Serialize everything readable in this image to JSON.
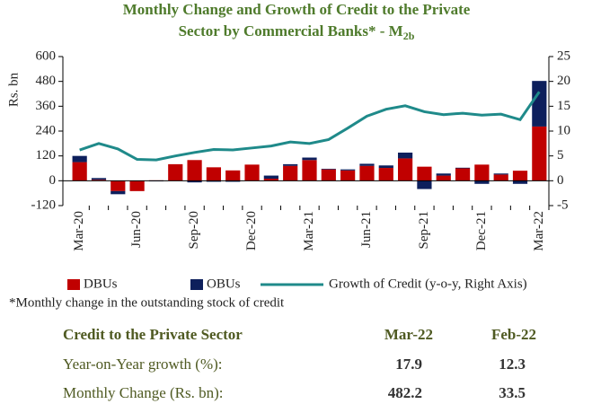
{
  "chart_data": {
    "type": "bar",
    "title_line1": "Monthly Change and Growth of Credit to the Private",
    "title_line2": "Sector by Commercial Banks* - M",
    "title_subscript": "2b",
    "ylabel": "Rs. bn",
    "categories": [
      "Mar-20",
      null,
      null,
      "Jun-20",
      null,
      null,
      "Sep-20",
      null,
      null,
      "Dec-20",
      null,
      null,
      "Mar-21",
      null,
      null,
      "Jun-21",
      null,
      null,
      "Sep-21",
      null,
      null,
      "Dec-21",
      null,
      null,
      "Mar-22"
    ],
    "series": [
      {
        "name": "DBUs",
        "color": "#c00000",
        "values": [
          90,
          5,
          -50,
          -50,
          2,
          80,
          100,
          65,
          50,
          78,
          10,
          72,
          100,
          55,
          50,
          72,
          62,
          108,
          68,
          25,
          60,
          78,
          30,
          48.5,
          262
        ]
      },
      {
        "name": "OBUs",
        "color": "#0d1f5c",
        "values": [
          30,
          8,
          -15,
          0,
          -3,
          0,
          -8,
          -5,
          -5,
          0,
          15,
          8,
          12,
          3,
          5,
          10,
          12,
          28,
          -40,
          10,
          3,
          -15,
          5,
          -15,
          220.2
        ]
      },
      {
        "name": "Growth of Credit (y-o-y, Right Axis)",
        "color": "#1f8a8a",
        "axis": "y2",
        "type": "line",
        "values": [
          6.2,
          7.5,
          6.4,
          4.3,
          4.2,
          5.0,
          5.7,
          6.3,
          6.2,
          6.6,
          7.0,
          7.8,
          7.5,
          8.3,
          10.6,
          13.0,
          14.4,
          15.1,
          13.9,
          13.3,
          13.6,
          13.2,
          13.4,
          12.3,
          17.9
        ]
      }
    ],
    "stacked": true,
    "ylim": [
      -120,
      600
    ],
    "yticks": [
      -120,
      0,
      120,
      240,
      360,
      480,
      600
    ],
    "y2lim": [
      -5,
      25
    ],
    "y2ticks": [
      -5,
      0,
      5,
      10,
      15,
      20,
      25
    ],
    "footnote": "*Monthly change in the outstanding stock of credit"
  },
  "table": {
    "header": [
      "Credit to the Private Sector",
      "Mar-22",
      "Feb-22"
    ],
    "rows": [
      [
        "Year-on-Year growth (%):",
        17.9,
        12.3
      ],
      [
        "Monthly Change (Rs. bn):",
        482.2,
        33.5
      ]
    ]
  }
}
